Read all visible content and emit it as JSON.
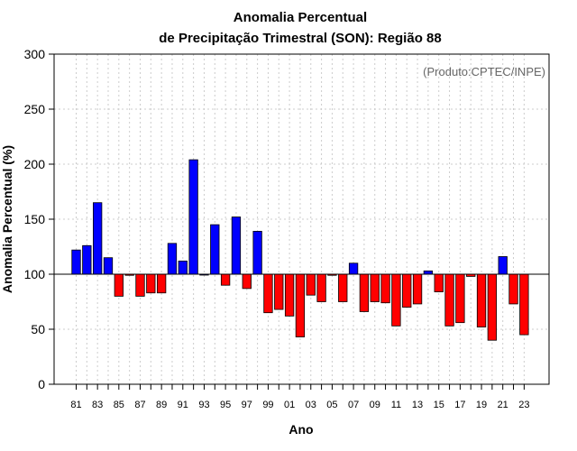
{
  "chart_data": {
    "type": "bar",
    "title_line1": "Anomalia Percentual",
    "title_line2": "de Precipitação Trimestral (SON): Região 88",
    "credit": "(Produto:CPTEC/INPE)",
    "xlabel": "Ano",
    "ylabel": "Anomalia Percentual (%)",
    "ylim": [
      0,
      300
    ],
    "yticks": [
      0,
      50,
      100,
      150,
      200,
      250,
      300
    ],
    "baseline": 100,
    "grid": true,
    "categories": [
      "81",
      "82",
      "83",
      "84",
      "85",
      "86",
      "87",
      "88",
      "89",
      "90",
      "91",
      "92",
      "93",
      "94",
      "95",
      "96",
      "97",
      "98",
      "99",
      "00",
      "01",
      "02",
      "03",
      "04",
      "05",
      "06",
      "07",
      "08",
      "09",
      "10",
      "11",
      "12",
      "13",
      "14",
      "15",
      "16",
      "17",
      "18",
      "19",
      "20",
      "21",
      "22",
      "23"
    ],
    "xtick_labels": [
      "81",
      "83",
      "85",
      "87",
      "89",
      "91",
      "93",
      "95",
      "97",
      "99",
      "01",
      "03",
      "05",
      "07",
      "09",
      "11",
      "13",
      "15",
      "17",
      "19",
      "21",
      "23"
    ],
    "values": [
      122,
      126,
      165,
      115,
      80,
      99,
      80,
      83,
      83,
      128,
      112,
      204,
      100,
      145,
      90,
      152,
      87,
      139,
      65,
      68,
      62,
      43,
      81,
      75,
      99,
      75,
      110,
      66,
      75,
      74,
      53,
      70,
      73,
      103,
      84,
      53,
      56,
      98,
      52,
      40,
      116,
      73,
      45
    ],
    "colors": {
      "above": "#0000ff",
      "below": "#ff0000",
      "border": "#000000",
      "grid": "#cccccc"
    }
  }
}
